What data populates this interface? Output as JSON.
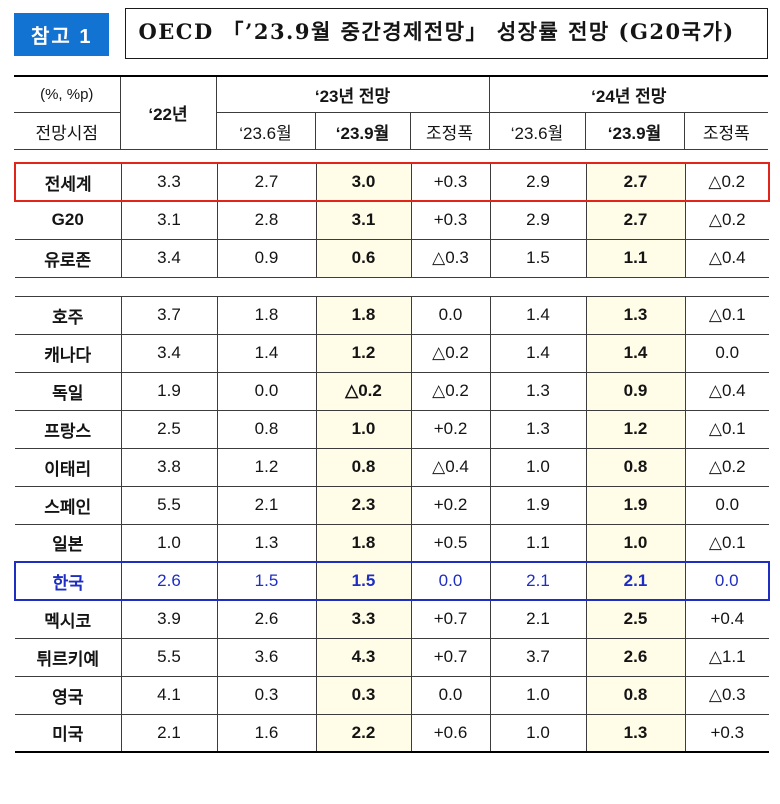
{
  "badge": {
    "label": "참고 1"
  },
  "title": {
    "text": "OECD 「’23.9월 중간경제전망」 성장률 전망 (G20국가)"
  },
  "table": {
    "header": {
      "unit": "(%, %p)",
      "timepoint": "전망시점",
      "y22": "‘22년",
      "g23": "‘23년 전망",
      "g24": "‘24년 전망",
      "sub_jun": "‘23.6월",
      "sub_sep": "‘23.9월",
      "sub_adj": "조정폭"
    },
    "sections": [
      {
        "rows": [
          {
            "name": "전세계",
            "values": [
              "3.3",
              "2.7",
              "3.0",
              "+0.3",
              "2.9",
              "2.7",
              "△0.2"
            ],
            "highlight": "red"
          },
          {
            "name": "G20",
            "values": [
              "3.1",
              "2.8",
              "3.1",
              "+0.3",
              "2.9",
              "2.7",
              "△0.2"
            ],
            "highlight": null
          },
          {
            "name": "유로존",
            "values": [
              "3.4",
              "0.9",
              "0.6",
              "△0.3",
              "1.5",
              "1.1",
              "△0.4"
            ],
            "highlight": null
          }
        ]
      },
      {
        "rows": [
          {
            "name": "호주",
            "values": [
              "3.7",
              "1.8",
              "1.8",
              "0.0",
              "1.4",
              "1.3",
              "△0.1"
            ],
            "highlight": null
          },
          {
            "name": "캐나다",
            "values": [
              "3.4",
              "1.4",
              "1.2",
              "△0.2",
              "1.4",
              "1.4",
              "0.0"
            ],
            "highlight": null
          },
          {
            "name": "독일",
            "values": [
              "1.9",
              "0.0",
              "△0.2",
              "△0.2",
              "1.3",
              "0.9",
              "△0.4"
            ],
            "highlight": null
          },
          {
            "name": "프랑스",
            "values": [
              "2.5",
              "0.8",
              "1.0",
              "+0.2",
              "1.3",
              "1.2",
              "△0.1"
            ],
            "highlight": null
          },
          {
            "name": "이태리",
            "values": [
              "3.8",
              "1.2",
              "0.8",
              "△0.4",
              "1.0",
              "0.8",
              "△0.2"
            ],
            "highlight": null
          },
          {
            "name": "스페인",
            "values": [
              "5.5",
              "2.1",
              "2.3",
              "+0.2",
              "1.9",
              "1.9",
              "0.0"
            ],
            "highlight": null
          },
          {
            "name": "일본",
            "values": [
              "1.0",
              "1.3",
              "1.8",
              "+0.5",
              "1.1",
              "1.0",
              "△0.1"
            ],
            "highlight": null
          },
          {
            "name": "한국",
            "values": [
              "2.6",
              "1.5",
              "1.5",
              "0.0",
              "2.1",
              "2.1",
              "0.0"
            ],
            "highlight": "blue"
          },
          {
            "name": "멕시코",
            "values": [
              "3.9",
              "2.6",
              "3.3",
              "+0.7",
              "2.1",
              "2.5",
              "+0.4"
            ],
            "highlight": null
          },
          {
            "name": "튀르키예",
            "values": [
              "5.5",
              "3.6",
              "4.3",
              "+0.7",
              "3.7",
              "2.6",
              "△1.1"
            ],
            "highlight": null
          },
          {
            "name": "영국",
            "values": [
              "4.1",
              "0.3",
              "0.3",
              "0.0",
              "1.0",
              "0.8",
              "△0.3"
            ],
            "highlight": null
          },
          {
            "name": "미국",
            "values": [
              "2.1",
              "1.6",
              "2.2",
              "+0.6",
              "1.0",
              "1.3",
              "+0.3"
            ],
            "highlight": null
          }
        ]
      }
    ]
  },
  "colors": {
    "accent": "#1273d2",
    "red-box": "#e1251b",
    "blue-box": "#1e2ec2",
    "cream": "#fffce8",
    "line": "#3c3c3c",
    "line-strong": "#000000"
  }
}
